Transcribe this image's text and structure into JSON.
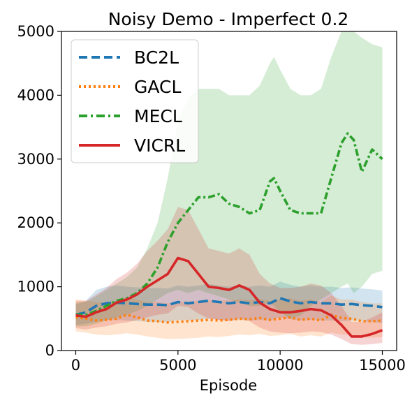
{
  "chart_data": {
    "type": "line",
    "title": "Noisy Demo - Imperfect 0.2",
    "xlabel": "Episode",
    "ylabel": "",
    "xlim": [
      -700,
      15700
    ],
    "ylim": [
      0,
      5000
    ],
    "xticks": [
      0,
      5000,
      10000,
      15000
    ],
    "xtick_labels": [
      "0",
      "5000",
      "10000",
      "15000"
    ],
    "yticks": [
      0,
      1000,
      2000,
      3000,
      4000,
      5000
    ],
    "ytick_labels": [
      "0",
      "1000",
      "2000",
      "3000",
      "4000",
      "5000"
    ],
    "grid": false,
    "legend_position": "upper-left",
    "series": [
      {
        "name": "BC2L",
        "color": "#1f77b4",
        "dash": "dashed",
        "x": [
          0,
          500,
          1000,
          1500,
          2000,
          2500,
          3000,
          3500,
          4000,
          4500,
          5000,
          5500,
          6000,
          6500,
          7000,
          7500,
          8000,
          8500,
          9000,
          9500,
          10000,
          10500,
          11000,
          11500,
          12000,
          12500,
          13000,
          13500,
          14000,
          14500,
          15000
        ],
        "y": [
          560,
          600,
          700,
          740,
          750,
          740,
          730,
          720,
          720,
          710,
          760,
          740,
          760,
          780,
          760,
          740,
          760,
          740,
          760,
          740,
          820,
          770,
          740,
          760,
          740,
          740,
          720,
          730,
          710,
          700,
          680
        ],
        "lower": [
          400,
          420,
          450,
          480,
          480,
          470,
          460,
          450,
          450,
          440,
          480,
          470,
          480,
          500,
          480,
          470,
          480,
          470,
          480,
          470,
          520,
          490,
          470,
          480,
          470,
          470,
          460,
          470,
          460,
          450,
          430
        ],
        "upper": [
          720,
          780,
          950,
          1000,
          1020,
          1000,
          990,
          980,
          980,
          970,
          1020,
          1000,
          1020,
          1040,
          1020,
          1000,
          1020,
          1000,
          1020,
          1000,
          1080,
          1030,
          1000,
          1020,
          1000,
          1000,
          980,
          990,
          970,
          960,
          940
        ]
      },
      {
        "name": "GACL",
        "color": "#ff7f0e",
        "dash": "dotted",
        "x": [
          0,
          500,
          1000,
          1500,
          2000,
          2500,
          3000,
          3500,
          4000,
          4500,
          5000,
          5500,
          6000,
          6500,
          7000,
          7500,
          8000,
          8500,
          9000,
          9500,
          10000,
          10500,
          11000,
          11500,
          12000,
          12500,
          13000,
          13500,
          14000,
          14500,
          15000
        ],
        "y": [
          520,
          500,
          470,
          480,
          500,
          560,
          520,
          470,
          460,
          440,
          450,
          460,
          470,
          480,
          470,
          480,
          500,
          490,
          510,
          480,
          500,
          520,
          480,
          500,
          470,
          560,
          510,
          500,
          460,
          460,
          470
        ],
        "lower": [
          300,
          280,
          250,
          240,
          250,
          270,
          250,
          220,
          200,
          180,
          180,
          190,
          200,
          220,
          210,
          230,
          250,
          240,
          260,
          230,
          240,
          260,
          220,
          240,
          220,
          280,
          250,
          240,
          210,
          200,
          210
        ],
        "upper": [
          800,
          780,
          760,
          750,
          780,
          840,
          800,
          760,
          760,
          740,
          760,
          770,
          780,
          790,
          780,
          790,
          800,
          790,
          810,
          780,
          800,
          820,
          780,
          800,
          760,
          860,
          800,
          800,
          760,
          740,
          740
        ]
      },
      {
        "name": "MECL",
        "color": "#2ca02c",
        "dash": "dashdot",
        "x": [
          0,
          500,
          1000,
          1500,
          2000,
          2500,
          3000,
          3500,
          4000,
          4500,
          5000,
          5500,
          6000,
          6500,
          7000,
          7500,
          8000,
          8500,
          9000,
          9500,
          9700,
          10000,
          10500,
          11000,
          11500,
          12000,
          12500,
          13000,
          13300,
          13600,
          14000,
          14500,
          15000
        ],
        "y": [
          560,
          560,
          620,
          700,
          780,
          820,
          900,
          1050,
          1300,
          1700,
          2000,
          2200,
          2400,
          2400,
          2450,
          2300,
          2250,
          2150,
          2200,
          2650,
          2700,
          2500,
          2200,
          2150,
          2150,
          2150,
          2700,
          3250,
          3400,
          3300,
          2800,
          3150,
          3000
        ],
        "lower": [
          380,
          380,
          420,
          470,
          520,
          560,
          620,
          700,
          800,
          900,
          950,
          900,
          950,
          900,
          850,
          800,
          750,
          700,
          700,
          750,
          700,
          600,
          500,
          550,
          700,
          800,
          900,
          1000,
          1050,
          900,
          1000,
          1200,
          1250
        ],
        "upper": [
          750,
          760,
          850,
          950,
          1050,
          1150,
          1300,
          1600,
          2000,
          2700,
          3600,
          3950,
          4100,
          4100,
          4100,
          4000,
          4000,
          4000,
          4150,
          4500,
          4600,
          4400,
          4100,
          4000,
          4000,
          4100,
          4600,
          5000,
          5000,
          5000,
          4900,
          4800,
          4750
        ]
      },
      {
        "name": "VICRL",
        "color": "#d62728",
        "dash": "solid",
        "x": [
          0,
          500,
          1000,
          1500,
          2000,
          2500,
          3000,
          3500,
          4000,
          4500,
          5000,
          5500,
          6000,
          6500,
          7000,
          7500,
          8000,
          8500,
          9000,
          9500,
          10000,
          10500,
          11000,
          11500,
          12000,
          12500,
          13000,
          13500,
          14000,
          14500,
          15000
        ],
        "y": [
          550,
          530,
          600,
          650,
          750,
          800,
          880,
          1000,
          1100,
          1200,
          1450,
          1400,
          1200,
          1000,
          980,
          950,
          1020,
          950,
          750,
          650,
          600,
          600,
          620,
          650,
          630,
          550,
          400,
          220,
          220,
          260,
          320
        ],
        "lower": [
          350,
          330,
          360,
          380,
          420,
          440,
          480,
          520,
          560,
          580,
          700,
          680,
          580,
          500,
          480,
          460,
          500,
          460,
          360,
          300,
          280,
          270,
          280,
          300,
          290,
          250,
          180,
          100,
          90,
          100,
          120
        ],
        "upper": [
          780,
          780,
          880,
          980,
          1120,
          1220,
          1360,
          1560,
          1720,
          1900,
          2250,
          2200,
          1900,
          1600,
          1560,
          1520,
          1600,
          1500,
          1200,
          1050,
          980,
          980,
          1000,
          1050,
          1020,
          900,
          700,
          450,
          450,
          520,
          600
        ]
      }
    ]
  }
}
